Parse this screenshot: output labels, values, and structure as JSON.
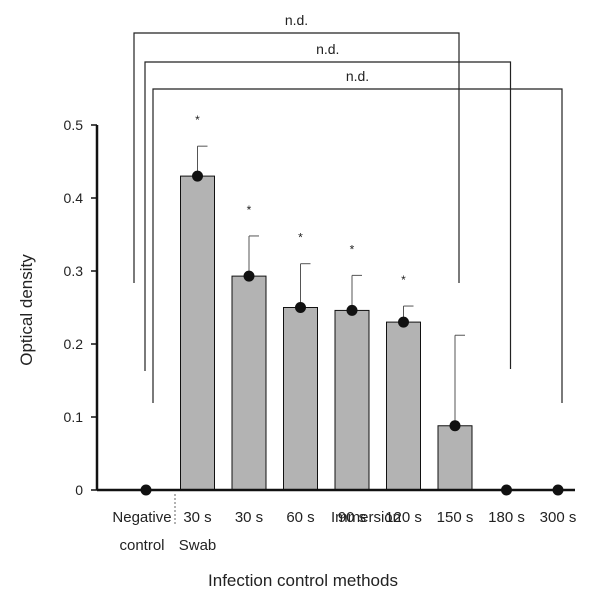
{
  "chart_data": {
    "type": "bar",
    "xlabel": "Infection control methods",
    "ylabel": "Optical density",
    "ylim": [
      0,
      0.5
    ],
    "yticks": [
      "0",
      "0.1",
      "0.2",
      "0.3",
      "0.4",
      "0.5"
    ],
    "categories": [
      "Negative control",
      "30 s",
      "30 s",
      "60 s",
      "90 s",
      "120 s",
      "150 s",
      "180 s",
      "300 s"
    ],
    "category_labels": [
      [
        "Negative",
        "control"
      ],
      [
        "30 s",
        "Swab"
      ],
      [
        "30 s",
        ""
      ],
      [
        "60 s",
        ""
      ],
      [
        "90 s",
        ""
      ],
      [
        "120 s",
        ""
      ],
      [
        "150 s",
        ""
      ],
      [
        "180 s",
        ""
      ],
      [
        "300 s",
        ""
      ]
    ],
    "group_label": "Immersion",
    "values": [
      0,
      0.43,
      0.293,
      0.25,
      0.246,
      0.23,
      0.088,
      0,
      0
    ],
    "error_upper": [
      null,
      0.471,
      0.348,
      0.31,
      0.294,
      0.252,
      0.212,
      null,
      null
    ],
    "significance": [
      "",
      "*",
      "*",
      "*",
      "*",
      "*",
      "",
      "",
      ""
    ],
    "comparisons": [
      {
        "from": "Negative control",
        "to": "150 s",
        "label": "n.d."
      },
      {
        "from": "Negative control",
        "to": "180 s",
        "label": "n.d."
      },
      {
        "from": "Negative control",
        "to": "300 s",
        "label": "n.d."
      }
    ],
    "bar_color": "#b3b3b3",
    "point_color": "#111111"
  }
}
